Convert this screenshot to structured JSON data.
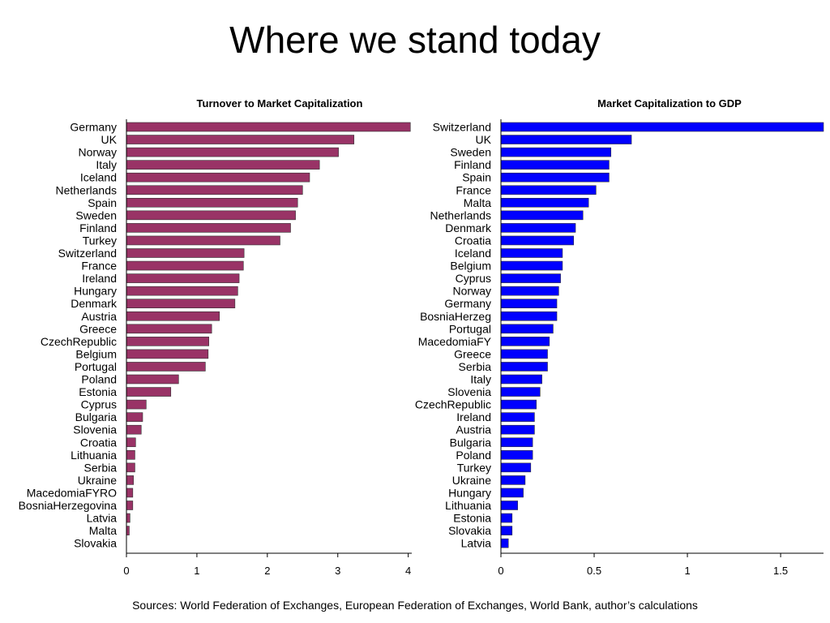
{
  "slide": {
    "title": "Where we stand today",
    "sources": "Sources: World Federation of Exchanges, European Federation of Exchanges, World Bank, author’s calculations"
  },
  "chart_data": [
    {
      "type": "bar",
      "orientation": "horizontal",
      "title": "Turnover to Market Capitalization",
      "color": "#993366",
      "xlim": [
        0,
        4.05
      ],
      "ticks": [
        0,
        1,
        2,
        3,
        4
      ],
      "tick_labels": [
        "0",
        "1",
        "2",
        "3",
        "4"
      ],
      "categories": [
        "Germany",
        "UK",
        "Norway",
        "Italy",
        "Iceland",
        "Netherlands",
        "Spain",
        "Sweden",
        "Finland",
        "Turkey",
        "Switzerland",
        "France",
        "Ireland",
        "Hungary",
        "Denmark",
        "Austria",
        "Greece",
        "CzechRepublic",
        "Belgium",
        "Portugal",
        "Poland",
        "Estonia",
        "Cyprus",
        "Bulgaria",
        "Slovenia",
        "Croatia",
        "Lithuania",
        "Serbia",
        "Ukraine",
        "MacedomiaFYRO",
        "BosniaHerzegovina",
        "Latvia",
        "Malta",
        "Slovakia"
      ],
      "values": [
        4.03,
        3.23,
        3.01,
        2.74,
        2.6,
        2.5,
        2.43,
        2.4,
        2.33,
        2.18,
        1.67,
        1.66,
        1.6,
        1.58,
        1.54,
        1.32,
        1.21,
        1.17,
        1.16,
        1.12,
        0.74,
        0.63,
        0.28,
        0.23,
        0.21,
        0.13,
        0.12,
        0.12,
        0.1,
        0.09,
        0.09,
        0.05,
        0.04,
        0.0
      ]
    },
    {
      "type": "bar",
      "orientation": "horizontal",
      "title": "Market Capitalization to GDP",
      "color": "#0000ff",
      "xlim": [
        0,
        1.73
      ],
      "ticks": [
        0,
        0.5,
        1,
        1.5
      ],
      "tick_labels": [
        "0",
        "0.5",
        "1",
        "1.5"
      ],
      "categories": [
        "Switzerland",
        "UK",
        "Sweden",
        "Finland",
        "Spain",
        "France",
        "Malta",
        "Netherlands",
        "Denmark",
        "Croatia",
        "Iceland",
        "Belgium",
        "Cyprus",
        "Norway",
        "Germany",
        "BosniaHerzeg",
        "Portugal",
        "MacedomiaFY",
        "Greece",
        "Serbia",
        "Italy",
        "Slovenia",
        "CzechRepublic",
        "Ireland",
        "Austria",
        "Bulgaria",
        "Poland",
        "Turkey",
        "Ukraine",
        "Hungary",
        "Lithuania",
        "Estonia",
        "Slovakia",
        "Latvia"
      ],
      "values": [
        1.73,
        0.7,
        0.59,
        0.58,
        0.58,
        0.51,
        0.47,
        0.44,
        0.4,
        0.39,
        0.33,
        0.33,
        0.32,
        0.31,
        0.3,
        0.3,
        0.28,
        0.26,
        0.25,
        0.25,
        0.22,
        0.21,
        0.19,
        0.18,
        0.18,
        0.17,
        0.17,
        0.16,
        0.13,
        0.12,
        0.09,
        0.06,
        0.06,
        0.04
      ]
    }
  ]
}
